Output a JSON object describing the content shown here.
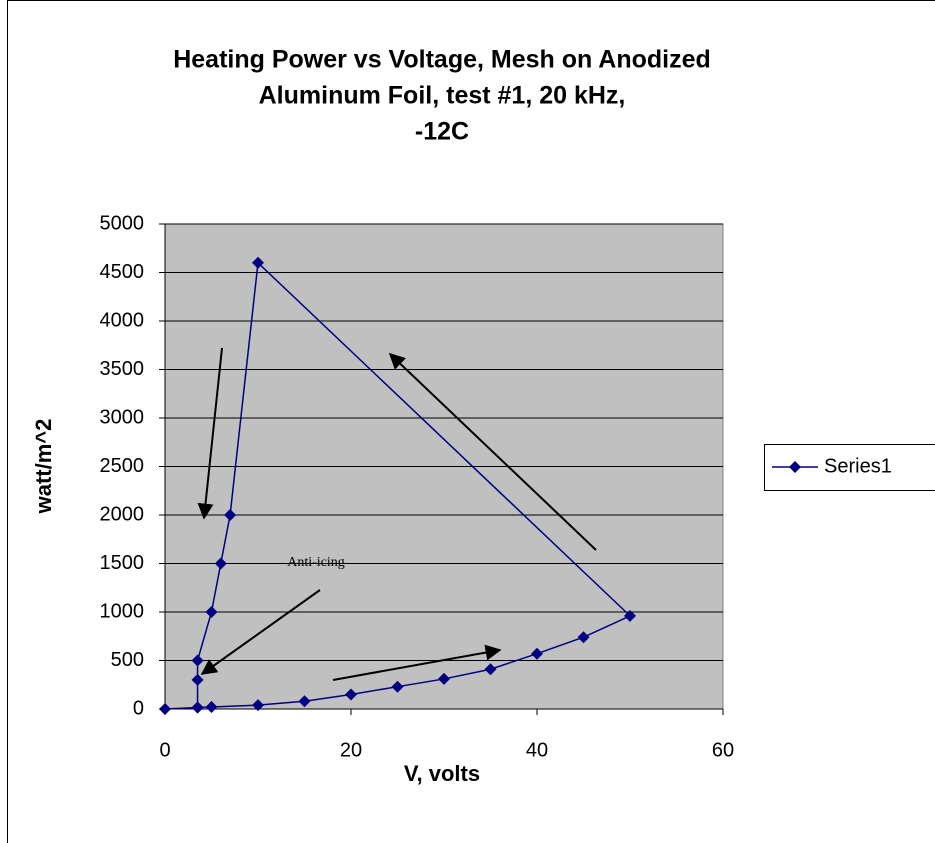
{
  "chart_data": {
    "type": "line",
    "title": [
      "Heating Power vs Voltage, Mesh on Anodized",
      "Aluminum Foil, test #1, 20 kHz,",
      "-12C"
    ],
    "x_label": "V, volts",
    "y_label": "watt/m^2",
    "annotations": [
      "Anti-icing"
    ],
    "x": [
      0,
      3.5,
      5,
      10,
      15,
      20,
      25,
      30,
      35,
      40,
      45,
      50,
      10,
      7,
      6,
      5,
      3.5,
      3.5,
      3.5
    ],
    "series": [
      {
        "name": "Series1",
        "color": "#000080",
        "values": [
          0,
          15,
          20,
          40,
          80,
          150,
          230,
          310,
          410,
          570,
          740,
          960,
          4600,
          2000,
          1500,
          1000,
          500,
          300,
          15
        ]
      }
    ],
    "xlim": [
      0,
      60
    ],
    "xticks": [
      0,
      20,
      40,
      60
    ],
    "ylim": [
      0,
      5000
    ],
    "yticks": [
      0,
      500,
      1000,
      1500,
      2000,
      2500,
      3000,
      3500,
      4000,
      4500,
      5000
    ],
    "grid": true,
    "legend": "right",
    "plot_background": "#c0c0c0"
  }
}
